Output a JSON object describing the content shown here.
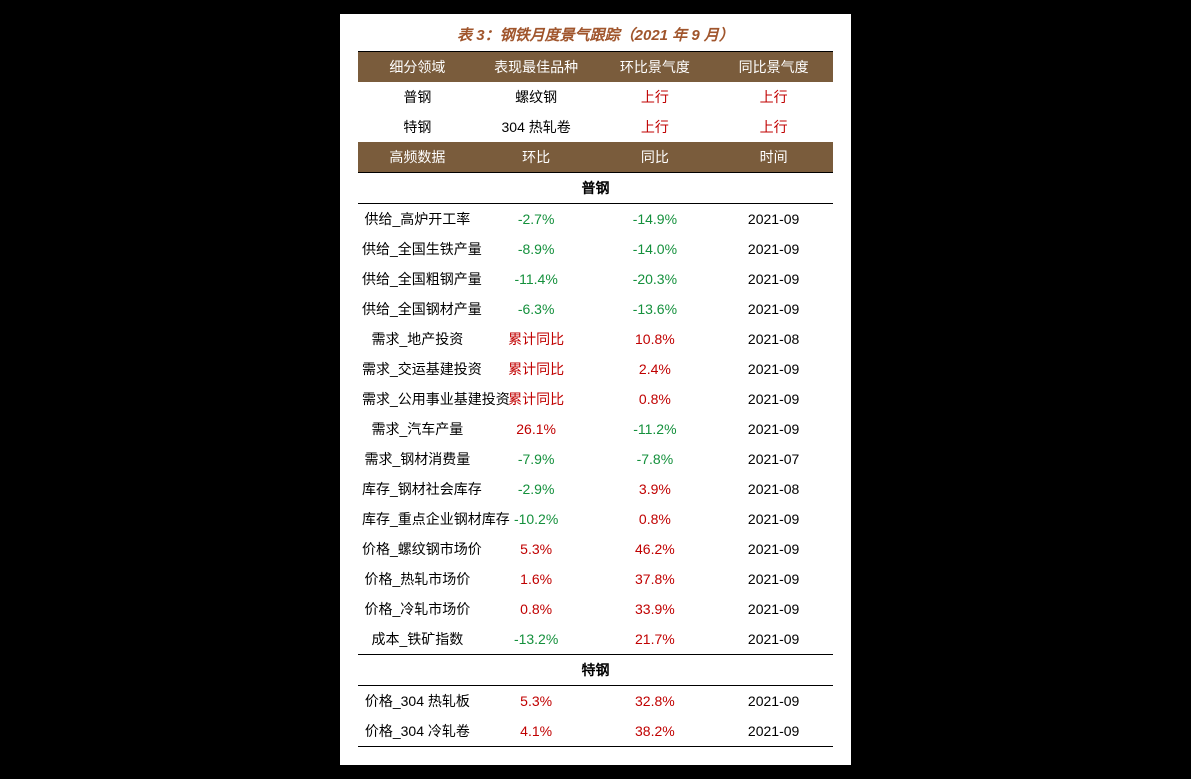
{
  "title": "表 3：钢铁月度景气跟踪（2021 年 9 月）",
  "colors": {
    "page_bg": "#000000",
    "card_bg": "#ffffff",
    "title_color": "#a0552c",
    "header_bg": "#7a5c3c",
    "header_fg": "#ffffff",
    "pos_color": "#c00000",
    "neg_color": "#14903c",
    "rule_color": "#000000"
  },
  "typography": {
    "title_fontsize": 15,
    "title_italic": true,
    "title_bold": true,
    "cell_fontsize": 14,
    "font_family": "Microsoft YaHei / SimSun / sans-serif"
  },
  "layout": {
    "columns": 4,
    "col_widths_pct": [
      25,
      25,
      25,
      25
    ],
    "align": "center"
  },
  "header1": {
    "c0": "细分领域",
    "c1": "表现最佳品种",
    "c2": "环比景气度",
    "c3": "同比景气度"
  },
  "top_rows": [
    {
      "c0": "普钢",
      "c1": "螺纹钢",
      "c2": {
        "text": "上行",
        "cls": "pos"
      },
      "c3": {
        "text": "上行",
        "cls": "pos"
      }
    },
    {
      "c0": "特钢",
      "c1": "304 热轧卷",
      "c2": {
        "text": "上行",
        "cls": "pos"
      },
      "c3": {
        "text": "上行",
        "cls": "pos"
      }
    }
  ],
  "header2": {
    "c0": "高频数据",
    "c1": "环比",
    "c2": "同比",
    "c3": "时间"
  },
  "section1": "普钢",
  "rows1": [
    {
      "c0": "供给_高炉开工率",
      "c1": {
        "text": "-2.7%",
        "cls": "neg"
      },
      "c2": {
        "text": "-14.9%",
        "cls": "neg"
      },
      "c3": "2021-09"
    },
    {
      "c0": "供给_全国生铁产量",
      "c1": {
        "text": "-8.9%",
        "cls": "neg"
      },
      "c2": {
        "text": "-14.0%",
        "cls": "neg"
      },
      "c3": "2021-09"
    },
    {
      "c0": "供给_全国粗钢产量",
      "c1": {
        "text": "-11.4%",
        "cls": "neg"
      },
      "c2": {
        "text": "-20.3%",
        "cls": "neg"
      },
      "c3": "2021-09"
    },
    {
      "c0": "供给_全国钢材产量",
      "c1": {
        "text": "-6.3%",
        "cls": "neg"
      },
      "c2": {
        "text": "-13.6%",
        "cls": "neg"
      },
      "c3": "2021-09"
    },
    {
      "c0": "需求_地产投资",
      "c1": {
        "text": "累计同比",
        "cls": "pos"
      },
      "c2": {
        "text": "10.8%",
        "cls": "pos"
      },
      "c3": "2021-08"
    },
    {
      "c0": "需求_交运基建投资",
      "c1": {
        "text": "累计同比",
        "cls": "pos"
      },
      "c2": {
        "text": "2.4%",
        "cls": "pos"
      },
      "c3": "2021-09"
    },
    {
      "c0": "需求_公用事业基建投资",
      "c1": {
        "text": "累计同比",
        "cls": "pos"
      },
      "c2": {
        "text": "0.8%",
        "cls": "pos"
      },
      "c3": "2021-09"
    },
    {
      "c0": "需求_汽车产量",
      "c1": {
        "text": "26.1%",
        "cls": "pos"
      },
      "c2": {
        "text": "-11.2%",
        "cls": "neg"
      },
      "c3": "2021-09"
    },
    {
      "c0": "需求_钢材消费量",
      "c1": {
        "text": "-7.9%",
        "cls": "neg"
      },
      "c2": {
        "text": "-7.8%",
        "cls": "neg"
      },
      "c3": "2021-07"
    },
    {
      "c0": "库存_钢材社会库存",
      "c1": {
        "text": "-2.9%",
        "cls": "neg"
      },
      "c2": {
        "text": "3.9%",
        "cls": "pos"
      },
      "c3": "2021-08"
    },
    {
      "c0": "库存_重点企业钢材库存",
      "c1": {
        "text": "-10.2%",
        "cls": "neg"
      },
      "c2": {
        "text": "0.8%",
        "cls": "pos"
      },
      "c3": "2021-09"
    },
    {
      "c0": "价格_螺纹钢市场价",
      "c1": {
        "text": "5.3%",
        "cls": "pos"
      },
      "c2": {
        "text": "46.2%",
        "cls": "pos"
      },
      "c3": "2021-09"
    },
    {
      "c0": "价格_热轧市场价",
      "c1": {
        "text": "1.6%",
        "cls": "pos"
      },
      "c2": {
        "text": "37.8%",
        "cls": "pos"
      },
      "c3": "2021-09"
    },
    {
      "c0": "价格_冷轧市场价",
      "c1": {
        "text": "0.8%",
        "cls": "pos"
      },
      "c2": {
        "text": "33.9%",
        "cls": "pos"
      },
      "c3": "2021-09"
    },
    {
      "c0": "成本_铁矿指数",
      "c1": {
        "text": "-13.2%",
        "cls": "neg"
      },
      "c2": {
        "text": "21.7%",
        "cls": "pos"
      },
      "c3": "2021-09"
    }
  ],
  "section2": "特钢",
  "rows2": [
    {
      "c0": "价格_304 热轧板",
      "c1": {
        "text": "5.3%",
        "cls": "pos"
      },
      "c2": {
        "text": "32.8%",
        "cls": "pos"
      },
      "c3": "2021-09"
    },
    {
      "c0": "价格_304 冷轧卷",
      "c1": {
        "text": "4.1%",
        "cls": "pos"
      },
      "c2": {
        "text": "38.2%",
        "cls": "pos"
      },
      "c3": "2021-09"
    }
  ]
}
